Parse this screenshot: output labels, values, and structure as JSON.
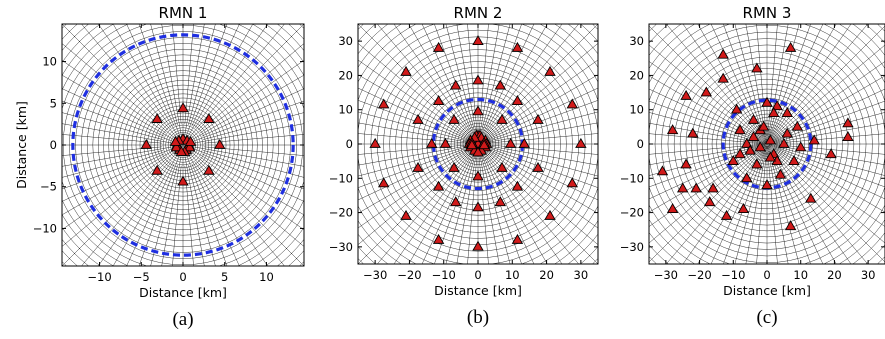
{
  "chart_data": [
    {
      "type": "scatter",
      "title": "RMN 1",
      "xlabel": "Distance [km]",
      "ylabel": "Distance [km]",
      "caption": "(a)",
      "xlim": [
        -14.5,
        14.5
      ],
      "ylim": [
        -14.5,
        14.5
      ],
      "xticks": [
        -10,
        -5,
        0,
        5,
        10
      ],
      "yticks": [
        -10,
        -5,
        0,
        5,
        10
      ],
      "grid": "polar-mesh",
      "mesh": {
        "rmax": 14.5,
        "rings": 44,
        "spokes": 72
      },
      "boundary_circle": {
        "radius": 13.2,
        "color": "#1f2fe0",
        "style": "dashed"
      },
      "marker_color": "#d11a1a",
      "stations": {
        "x": [
          0,
          -3.1,
          3.1,
          -4.4,
          4.4,
          -3.1,
          3.1,
          0,
          0,
          0.5,
          -0.5,
          0.7,
          -0.7,
          0.4,
          -0.4,
          0.8,
          -0.8,
          0.2,
          -0.2,
          0.9,
          -0.9
        ],
        "y": [
          4.4,
          3.1,
          3.1,
          0,
          0,
          -3.1,
          -3.1,
          -4.4,
          0.7,
          0.5,
          0.5,
          0,
          0,
          -0.6,
          -0.6,
          -0.3,
          -0.3,
          -0.85,
          -0.85,
          0.35,
          0.35
        ]
      }
    },
    {
      "type": "scatter",
      "title": "RMN 2",
      "xlabel": "Distance [km]",
      "ylabel": "",
      "caption": "(b)",
      "xlim": [
        -35,
        35
      ],
      "ylim": [
        -35,
        35
      ],
      "xticks": [
        -30,
        -20,
        -10,
        0,
        10,
        20,
        30
      ],
      "yticks": [
        -30,
        -20,
        -10,
        0,
        10,
        20,
        30
      ],
      "grid": "polar-mesh",
      "mesh": {
        "rmax": 35,
        "rings": 40,
        "spokes": 72
      },
      "boundary_circle": {
        "radius": 13,
        "color": "#1f2fe0",
        "style": "dashed"
      },
      "marker_color": "#d11a1a",
      "stations": {
        "x": [
          0,
          11.5,
          21,
          27.5,
          30,
          27.5,
          21,
          11.5,
          0,
          -11.5,
          -21,
          -27.5,
          -30,
          -27.5,
          -21,
          -11.5,
          0,
          6.5,
          11.5,
          13.5,
          11.5,
          6.5,
          0,
          -6.5,
          -11.5,
          -13.5,
          -11.5,
          -6.5,
          0,
          7,
          9.5,
          7,
          0,
          -7,
          -9.5,
          -7,
          0,
          17.5,
          -17.5,
          17.5,
          -17.5,
          0,
          -0.5,
          0.6,
          1,
          -1,
          2.2,
          -2.2,
          2.5,
          -2.5,
          2.2,
          -2.2,
          1,
          -1,
          0,
          1.8,
          -1.8,
          1.8,
          -1.8
        ],
        "y": [
          30,
          28,
          21,
          11.5,
          0,
          -11.5,
          -21,
          -28,
          -30,
          -28,
          -21,
          -11.5,
          0,
          11.5,
          21,
          28,
          18.5,
          17,
          12.5,
          0,
          -12.5,
          -17,
          -18.5,
          -17,
          -12.5,
          0,
          12.5,
          17,
          9.5,
          7,
          0,
          -7,
          -9.5,
          -7,
          0,
          7,
          0,
          7,
          7,
          -7,
          -7,
          2.5,
          2.4,
          2.4,
          1.8,
          1.8,
          1,
          1,
          0,
          0,
          -1,
          -1,
          -2,
          -2,
          -2.5,
          0.3,
          0.3,
          -0.4,
          -0.4
        ]
      }
    },
    {
      "type": "scatter",
      "title": "RMN 3",
      "xlabel": "Distance [km]",
      "ylabel": "",
      "caption": "(c)",
      "xlim": [
        -35,
        35
      ],
      "ylim": [
        -35,
        35
      ],
      "xticks": [
        -30,
        -20,
        -10,
        0,
        10,
        20,
        30
      ],
      "yticks": [
        -30,
        -20,
        -10,
        0,
        10,
        20,
        30
      ],
      "grid": "polar-mesh",
      "mesh": {
        "rmax": 35,
        "rings": 40,
        "spokes": 72
      },
      "boundary_circle": {
        "radius": 13,
        "color": "#1f2fe0",
        "style": "dashed"
      },
      "marker_color": "#d11a1a",
      "stations": {
        "x": [
          7,
          -13,
          -3,
          -24,
          -18,
          -13,
          -28,
          -22,
          -9,
          0,
          9,
          24,
          24,
          19,
          14,
          -31,
          -24,
          -21,
          -16,
          -10,
          -6,
          -25,
          -12,
          -7,
          -28,
          -17,
          7,
          13,
          3,
          -4,
          -8,
          -2,
          6,
          -5,
          2,
          10,
          1,
          -1,
          3,
          -3,
          4,
          0,
          -6,
          6,
          2,
          -2,
          1,
          5,
          -4,
          8,
          -8
        ],
        "y": [
          28,
          26,
          22,
          14,
          15,
          19,
          4,
          3,
          10,
          12,
          5,
          6,
          2,
          -3,
          1,
          -8,
          -6,
          -13,
          -13,
          -5,
          0,
          -13,
          -21,
          -19,
          -19,
          -17,
          -24,
          -16,
          11,
          7,
          4,
          4,
          3,
          -2,
          -3,
          -1,
          1,
          5,
          -5,
          -6,
          -9,
          -12,
          -10,
          9,
          9,
          -1,
          -4,
          0,
          2,
          -5,
          -3
        ]
      }
    }
  ]
}
